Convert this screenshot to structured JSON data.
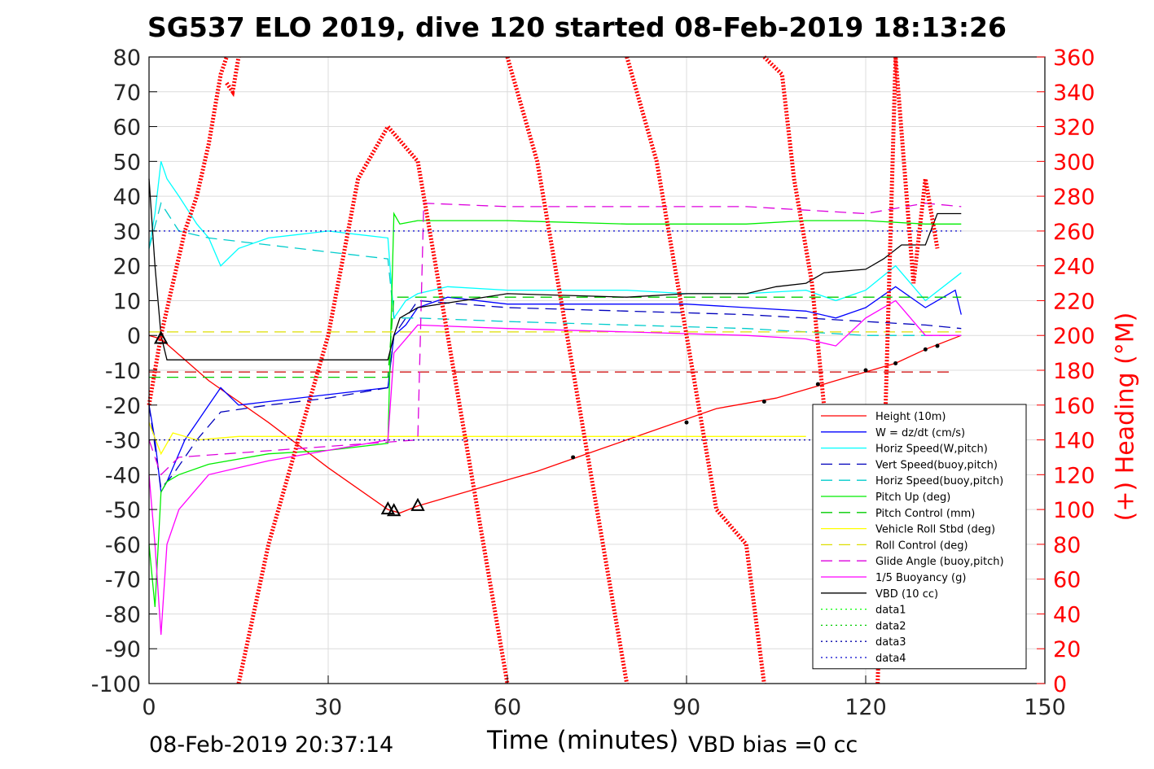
{
  "chart_data": {
    "type": "line",
    "title": "SG537 ELO 2019, dive 120 started 08-Feb-2019 18:13:26",
    "xlabel": "Time (minutes)",
    "ylabel_right": "(+) Heading (°M)",
    "xlim": [
      0,
      150
    ],
    "ylim": [
      -100,
      80
    ],
    "ylim_right": [
      0,
      360
    ],
    "x_ticks": [
      "0",
      "30",
      "60",
      "90",
      "120",
      "150"
    ],
    "y_ticks": [
      "80",
      "70",
      "60",
      "50",
      "40",
      "30",
      "20",
      "10",
      "0",
      "-10",
      "-20",
      "-30",
      "-40",
      "-50",
      "-60",
      "-70",
      "-80",
      "-90",
      "-100"
    ],
    "y_ticks_right": [
      "360",
      "340",
      "320",
      "300",
      "280",
      "260",
      "240",
      "220",
      "200",
      "180",
      "160",
      "140",
      "120",
      "100",
      "80",
      "60",
      "40",
      "20",
      "0"
    ],
    "grid": true,
    "legend_position": "lower-right",
    "footer_left": "08-Feb-2019 20:37:14",
    "footer_right": "VBD bias =0 cc",
    "series": [
      {
        "name": "Height (10m)",
        "color": "#ff0000",
        "style": "solid",
        "x": [
          0,
          2,
          10,
          20,
          30,
          40,
          42,
          45,
          55,
          65,
          75,
          85,
          95,
          105,
          115,
          125,
          130,
          136
        ],
        "y": [
          0,
          -1,
          -13,
          -25,
          -38,
          -50,
          -51,
          -49,
          -44,
          -39,
          -33,
          -27,
          -21,
          -18,
          -13,
          -8,
          -4,
          0
        ]
      },
      {
        "name": "W = dz/dt (cm/s)",
        "color": "#0000ff",
        "style": "solid",
        "x": [
          0,
          1,
          2,
          3,
          4,
          6,
          8,
          10,
          12,
          15,
          20,
          30,
          40,
          41,
          43,
          45,
          50,
          60,
          70,
          80,
          90,
          100,
          110,
          115,
          120,
          125,
          130,
          135,
          136
        ],
        "y": [
          -20,
          -30,
          -45,
          -42,
          -38,
          -30,
          -25,
          -20,
          -15,
          -20,
          -19,
          -17,
          -15,
          0,
          3,
          8,
          11,
          9,
          9,
          9,
          9,
          8,
          7,
          5,
          8,
          14,
          8,
          13,
          6
        ]
      },
      {
        "name": "Horiz Speed(W,pitch)",
        "color": "#00ffff",
        "style": "solid",
        "x": [
          0,
          1,
          2,
          3,
          5,
          8,
          10,
          12,
          15,
          20,
          25,
          30,
          35,
          40,
          41,
          43,
          45,
          50,
          60,
          70,
          80,
          90,
          100,
          110,
          115,
          120,
          125,
          130,
          136
        ],
        "y": [
          25,
          35,
          50,
          45,
          40,
          32,
          28,
          20,
          25,
          28,
          29,
          30,
          29,
          28,
          5,
          10,
          12,
          14,
          13,
          13,
          13,
          12,
          12,
          13,
          10,
          13,
          20,
          10,
          18
        ]
      },
      {
        "name": "Vert Speed(buoy,pitch)",
        "color": "#0000bb",
        "style": "dashed",
        "x": [
          0,
          2,
          4,
          8,
          12,
          20,
          30,
          40,
          41,
          45,
          60,
          80,
          100,
          110,
          120,
          130,
          136
        ],
        "y": [
          -20,
          -44,
          -40,
          -30,
          -22,
          -20,
          -18,
          -15,
          0,
          10,
          8,
          7,
          6,
          5,
          4,
          3,
          2
        ]
      },
      {
        "name": "Horiz Speed(buoy,pitch)",
        "color": "#00cccc",
        "style": "dashed",
        "x": [
          0,
          2,
          5,
          10,
          15,
          20,
          30,
          40,
          41,
          45,
          60,
          80,
          100,
          110,
          120,
          130,
          136
        ],
        "y": [
          25,
          38,
          30,
          28,
          27,
          26,
          24,
          22,
          5,
          5,
          4,
          3,
          2,
          1,
          0,
          0,
          0
        ]
      },
      {
        "name": "Pitch Up (deg)",
        "color": "#00ee00",
        "style": "solid",
        "x": [
          0,
          1,
          2,
          3,
          5,
          10,
          20,
          30,
          40,
          41,
          42,
          45,
          60,
          80,
          100,
          110,
          120,
          130,
          136
        ],
        "y": [
          -60,
          -78,
          -45,
          -42,
          -40,
          -37,
          -34,
          -33,
          -31,
          35,
          32,
          33,
          33,
          32,
          32,
          33,
          33,
          32,
          32
        ]
      },
      {
        "name": "Pitch Control (mm)",
        "color": "#00cc00",
        "style": "dashed",
        "x": [
          0,
          40,
          41,
          136
        ],
        "y": [
          -12,
          -12,
          11,
          11
        ]
      },
      {
        "name": "Vehicle Roll Stbd (deg)",
        "color": "#ffff00",
        "style": "solid",
        "x": [
          0,
          2,
          4,
          8,
          15,
          30,
          45,
          60,
          80,
          100,
          110
        ],
        "y": [
          -25,
          -34,
          -28,
          -30,
          -29,
          -29,
          -29,
          -29,
          -29,
          -29,
          -29
        ]
      },
      {
        "name": "Roll Control (deg)",
        "color": "#dddd00",
        "style": "dashed",
        "x": [
          0,
          136
        ],
        "y": [
          1,
          1
        ]
      },
      {
        "name": "Glide Angle (buoy,pitch)",
        "color": "#dd00dd",
        "style": "dashed",
        "x": [
          0,
          2,
          5,
          45,
          46,
          60,
          80,
          100,
          110,
          120,
          130,
          136
        ],
        "y": [
          -30,
          -40,
          -35,
          -30,
          38,
          37,
          37,
          37,
          36,
          35,
          38,
          37
        ]
      },
      {
        "name": "1/5 Buoyancy (g)",
        "color": "#ff00ff",
        "style": "solid",
        "x": [
          0,
          1,
          2,
          3,
          5,
          10,
          15,
          20,
          30,
          40,
          41,
          45,
          60,
          80,
          100,
          110,
          115,
          120,
          125,
          130,
          136
        ],
        "y": [
          -40,
          -60,
          -86,
          -60,
          -50,
          -40,
          -38,
          -36,
          -33,
          -30,
          -5,
          3,
          2,
          1,
          0,
          -1,
          -3,
          5,
          10,
          0,
          0
        ]
      },
      {
        "name": "VBD (10 cc)",
        "color": "#000000",
        "style": "solid",
        "x": [
          0,
          1,
          2,
          3,
          40,
          41,
          42,
          45,
          60,
          80,
          90,
          100,
          105,
          110,
          113,
          120,
          123,
          126,
          130,
          132,
          136
        ],
        "y": [
          45,
          20,
          0,
          -7,
          -7,
          0,
          5,
          8,
          12,
          11,
          12,
          12,
          14,
          15,
          18,
          19,
          22,
          26,
          26,
          35,
          35
        ]
      },
      {
        "name": "data1",
        "color": "#00ff00",
        "style": "dotted",
        "x": [],
        "y": []
      },
      {
        "name": "data2",
        "color": "#00cc00",
        "style": "dotted",
        "x": [],
        "y": []
      },
      {
        "name": "data3",
        "color": "#0000aa",
        "style": "dotted",
        "x": [
          0,
          136
        ],
        "y": [
          -30,
          -30
        ]
      },
      {
        "name": "data4",
        "color": "#0000cc",
        "style": "dotted",
        "x": [
          0,
          136
        ],
        "y": [
          30,
          30
        ]
      }
    ],
    "reference_lines": [
      {
        "color": "#cc0000",
        "style": "dashed",
        "y": -10.5,
        "x": [
          0,
          134
        ]
      }
    ],
    "heading_segments": [
      {
        "x": [
          0,
          2,
          4,
          6,
          8,
          10,
          12,
          13
        ],
        "y": [
          160,
          200,
          230,
          260,
          280,
          310,
          350,
          360
        ]
      },
      {
        "x": [
          13,
          14,
          15
        ],
        "y": [
          345,
          340,
          360
        ]
      },
      {
        "x": [
          15,
          20,
          25,
          30,
          35,
          40,
          45
        ],
        "y": [
          0,
          80,
          140,
          200,
          290,
          320,
          300
        ]
      },
      {
        "x": [
          45,
          50,
          55,
          60
        ],
        "y": [
          300,
          200,
          100,
          0
        ]
      },
      {
        "x": [
          60,
          65,
          70,
          75,
          80
        ],
        "y": [
          360,
          300,
          200,
          100,
          0
        ]
      },
      {
        "x": [
          80,
          85,
          90,
          95,
          100
        ],
        "y": [
          360,
          300,
          200,
          100,
          80
        ]
      },
      {
        "x": [
          100,
          103
        ],
        "y": [
          80,
          0
        ]
      },
      {
        "x": [
          103,
          106,
          108,
          111,
          113
        ],
        "y": [
          360,
          350,
          290,
          230,
          160
        ]
      },
      {
        "x": [
          122,
          125,
          128,
          130,
          132
        ],
        "y": [
          0,
          360,
          230,
          290,
          250
        ]
      }
    ],
    "markers": [
      {
        "shape": "triangle",
        "x": [
          2,
          40,
          41,
          45
        ],
        "y": [
          -1,
          -50,
          -50.5,
          -49
        ]
      },
      {
        "shape": "dot",
        "x": [
          71,
          90,
          103,
          112,
          120,
          125,
          130,
          132
        ],
        "y": [
          -35,
          -25,
          -19,
          -14,
          -10,
          -8,
          -4,
          -3
        ]
      }
    ]
  }
}
